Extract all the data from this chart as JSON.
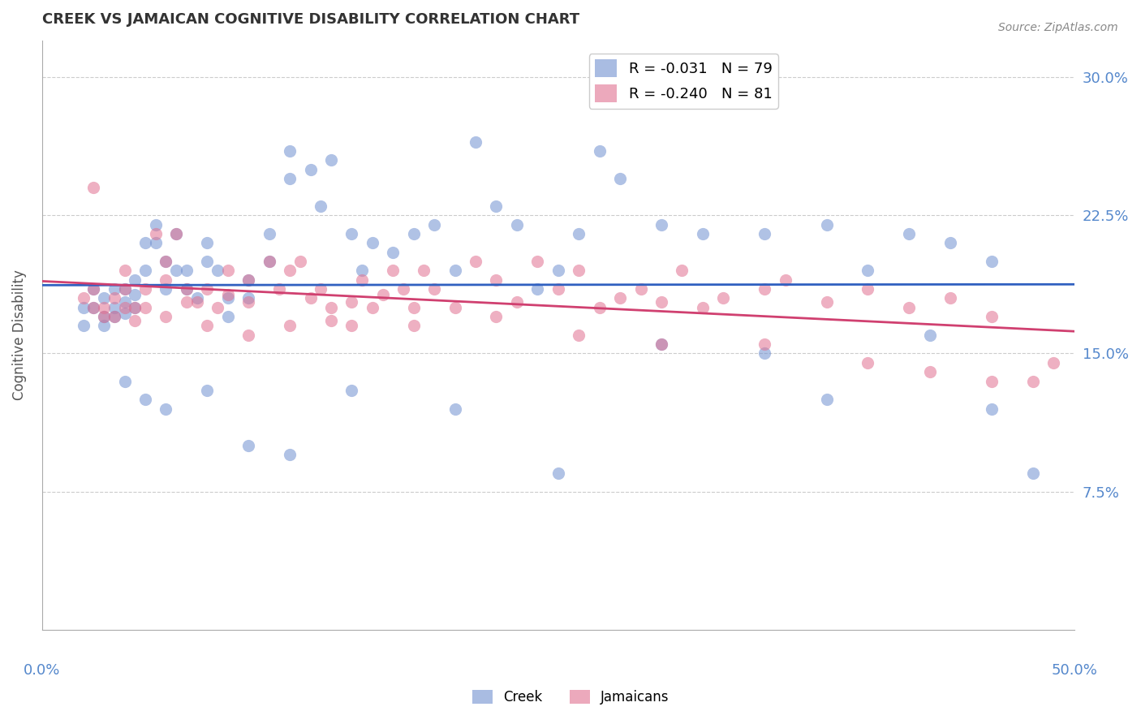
{
  "title": "CREEK VS JAMAICAN COGNITIVE DISABILITY CORRELATION CHART",
  "source": "Source: ZipAtlas.com",
  "ylabel": "Cognitive Disability",
  "ytick_labels": [
    "30.0%",
    "22.5%",
    "15.0%",
    "7.5%"
  ],
  "ytick_values": [
    0.3,
    0.225,
    0.15,
    0.075
  ],
  "xlim": [
    0.0,
    0.5
  ],
  "ylim": [
    0.0,
    0.32
  ],
  "creek_color": "#7090d0",
  "jamaican_color": "#e07090",
  "creek_line_color": "#3060c0",
  "jamaican_line_color": "#d04070",
  "background_color": "#ffffff",
  "grid_color": "#cccccc",
  "title_color": "#333333",
  "axis_color": "#5588cc",
  "creek_R": -0.031,
  "creek_N": 79,
  "jamaican_R": -0.24,
  "jamaican_N": 81,
  "creek_scatter_x": [
    0.02,
    0.02,
    0.025,
    0.025,
    0.03,
    0.03,
    0.03,
    0.035,
    0.035,
    0.035,
    0.04,
    0.04,
    0.04,
    0.045,
    0.045,
    0.045,
    0.05,
    0.05,
    0.055,
    0.055,
    0.06,
    0.06,
    0.065,
    0.065,
    0.07,
    0.07,
    0.075,
    0.08,
    0.08,
    0.085,
    0.09,
    0.09,
    0.1,
    0.1,
    0.11,
    0.11,
    0.12,
    0.12,
    0.13,
    0.135,
    0.14,
    0.15,
    0.155,
    0.16,
    0.17,
    0.18,
    0.19,
    0.2,
    0.21,
    0.22,
    0.23,
    0.24,
    0.25,
    0.26,
    0.27,
    0.28,
    0.3,
    0.32,
    0.35,
    0.38,
    0.4,
    0.42,
    0.44,
    0.46,
    0.04,
    0.05,
    0.06,
    0.08,
    0.1,
    0.12,
    0.15,
    0.2,
    0.25,
    0.3,
    0.35,
    0.38,
    0.43,
    0.46,
    0.48
  ],
  "creek_scatter_y": [
    0.175,
    0.165,
    0.185,
    0.175,
    0.18,
    0.17,
    0.165,
    0.185,
    0.175,
    0.17,
    0.185,
    0.178,
    0.172,
    0.19,
    0.182,
    0.175,
    0.21,
    0.195,
    0.22,
    0.21,
    0.2,
    0.185,
    0.215,
    0.195,
    0.195,
    0.185,
    0.18,
    0.21,
    0.2,
    0.195,
    0.18,
    0.17,
    0.19,
    0.18,
    0.215,
    0.2,
    0.26,
    0.245,
    0.25,
    0.23,
    0.255,
    0.215,
    0.195,
    0.21,
    0.205,
    0.215,
    0.22,
    0.195,
    0.265,
    0.23,
    0.22,
    0.185,
    0.195,
    0.215,
    0.26,
    0.245,
    0.22,
    0.215,
    0.215,
    0.22,
    0.195,
    0.215,
    0.21,
    0.2,
    0.135,
    0.125,
    0.12,
    0.13,
    0.1,
    0.095,
    0.13,
    0.12,
    0.085,
    0.155,
    0.15,
    0.125,
    0.16,
    0.12,
    0.085
  ],
  "jamaican_scatter_x": [
    0.02,
    0.025,
    0.025,
    0.03,
    0.03,
    0.035,
    0.035,
    0.04,
    0.04,
    0.045,
    0.045,
    0.05,
    0.05,
    0.055,
    0.06,
    0.06,
    0.065,
    0.07,
    0.07,
    0.075,
    0.08,
    0.085,
    0.09,
    0.09,
    0.1,
    0.1,
    0.11,
    0.115,
    0.12,
    0.125,
    0.13,
    0.135,
    0.14,
    0.14,
    0.15,
    0.155,
    0.16,
    0.165,
    0.17,
    0.175,
    0.18,
    0.185,
    0.19,
    0.2,
    0.21,
    0.22,
    0.23,
    0.24,
    0.25,
    0.26,
    0.27,
    0.28,
    0.29,
    0.3,
    0.31,
    0.32,
    0.33,
    0.35,
    0.36,
    0.38,
    0.4,
    0.42,
    0.44,
    0.46,
    0.025,
    0.04,
    0.06,
    0.08,
    0.1,
    0.12,
    0.15,
    0.18,
    0.22,
    0.26,
    0.3,
    0.35,
    0.4,
    0.43,
    0.46,
    0.48,
    0.49
  ],
  "jamaican_scatter_y": [
    0.18,
    0.175,
    0.185,
    0.175,
    0.17,
    0.18,
    0.17,
    0.185,
    0.175,
    0.175,
    0.168,
    0.185,
    0.175,
    0.215,
    0.2,
    0.19,
    0.215,
    0.185,
    0.178,
    0.178,
    0.185,
    0.175,
    0.195,
    0.182,
    0.19,
    0.178,
    0.2,
    0.185,
    0.195,
    0.2,
    0.18,
    0.185,
    0.175,
    0.168,
    0.178,
    0.19,
    0.175,
    0.182,
    0.195,
    0.185,
    0.175,
    0.195,
    0.185,
    0.175,
    0.2,
    0.19,
    0.178,
    0.2,
    0.185,
    0.195,
    0.175,
    0.18,
    0.185,
    0.178,
    0.195,
    0.175,
    0.18,
    0.185,
    0.19,
    0.178,
    0.185,
    0.175,
    0.18,
    0.17,
    0.24,
    0.195,
    0.17,
    0.165,
    0.16,
    0.165,
    0.165,
    0.165,
    0.17,
    0.16,
    0.155,
    0.155,
    0.145,
    0.14,
    0.135,
    0.135,
    0.145
  ]
}
